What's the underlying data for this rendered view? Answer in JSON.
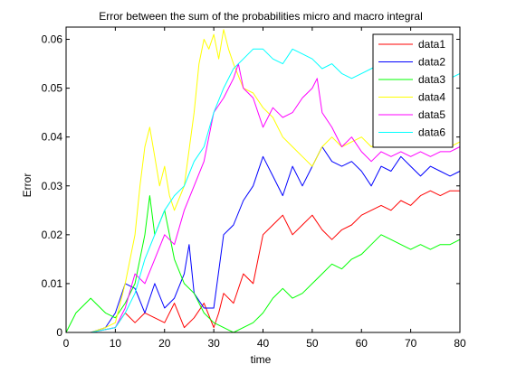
{
  "chart_data": {
    "type": "line",
    "title": "Error between the sum of the probabilities micro and macro integral",
    "xlabel": "time",
    "ylabel": "Error",
    "xlim": [
      0,
      80
    ],
    "ylim": [
      0,
      0.0625
    ],
    "xticks": [
      "0",
      "10",
      "20",
      "30",
      "40",
      "50",
      "60",
      "70",
      "80"
    ],
    "yticks": [
      "0",
      "0.01",
      "0.02",
      "0.03",
      "0.04",
      "0.05",
      "0.06"
    ],
    "grid": false,
    "legend_position": "top-right",
    "series": [
      {
        "name": "data1",
        "color": "#ff0000",
        "x": [
          0,
          5,
          10,
          12,
          14,
          16,
          18,
          20,
          22,
          24,
          26,
          28,
          30,
          31,
          32,
          34,
          36,
          38,
          40,
          42,
          44,
          46,
          48,
          50,
          52,
          54,
          56,
          58,
          60,
          62,
          64,
          66,
          68,
          70,
          72,
          74,
          76,
          78,
          80
        ],
        "y": [
          0,
          0,
          0.001,
          0.004,
          0.002,
          0.004,
          0.003,
          0.002,
          0.006,
          0.001,
          0.003,
          0.006,
          0.001,
          0.004,
          0.008,
          0.006,
          0.012,
          0.01,
          0.02,
          0.022,
          0.024,
          0.02,
          0.022,
          0.024,
          0.021,
          0.019,
          0.021,
          0.022,
          0.024,
          0.025,
          0.026,
          0.025,
          0.027,
          0.026,
          0.028,
          0.029,
          0.028,
          0.029,
          0.029
        ]
      },
      {
        "name": "data2",
        "color": "#0000ff",
        "x": [
          0,
          5,
          8,
          10,
          12,
          14,
          16,
          18,
          20,
          22,
          24,
          25,
          26,
          28,
          30,
          32,
          34,
          36,
          38,
          40,
          42,
          44,
          46,
          48,
          50,
          52,
          54,
          56,
          58,
          60,
          62,
          64,
          66,
          68,
          70,
          72,
          74,
          76,
          78,
          80
        ],
        "y": [
          0,
          0,
          0.001,
          0.004,
          0.01,
          0.009,
          0.004,
          0.01,
          0.005,
          0.007,
          0.012,
          0.018,
          0.008,
          0.005,
          0.005,
          0.02,
          0.022,
          0.027,
          0.03,
          0.036,
          0.032,
          0.028,
          0.034,
          0.03,
          0.034,
          0.038,
          0.035,
          0.034,
          0.035,
          0.033,
          0.03,
          0.034,
          0.033,
          0.036,
          0.034,
          0.032,
          0.034,
          0.033,
          0.032,
          0.033
        ]
      },
      {
        "name": "data3",
        "color": "#00ff00",
        "x": [
          0,
          2,
          5,
          6,
          8,
          10,
          12,
          14,
          16,
          17,
          18,
          20,
          22,
          24,
          26,
          28,
          30,
          32,
          34,
          36,
          38,
          40,
          42,
          44,
          46,
          48,
          50,
          52,
          54,
          56,
          58,
          60,
          62,
          64,
          66,
          68,
          70,
          72,
          74,
          76,
          78,
          80
        ],
        "y": [
          0,
          0.004,
          0.007,
          0.006,
          0.004,
          0.003,
          0.006,
          0.01,
          0.02,
          0.028,
          0.02,
          0.025,
          0.015,
          0.01,
          0.008,
          0.004,
          0.002,
          0.001,
          0.0,
          0.001,
          0.002,
          0.004,
          0.007,
          0.009,
          0.007,
          0.008,
          0.01,
          0.012,
          0.014,
          0.013,
          0.015,
          0.016,
          0.018,
          0.02,
          0.019,
          0.018,
          0.017,
          0.018,
          0.017,
          0.018,
          0.018,
          0.019
        ]
      },
      {
        "name": "data4",
        "color": "#ffff00",
        "x": [
          0,
          5,
          8,
          10,
          12,
          14,
          15,
          16,
          17,
          18,
          19,
          20,
          21,
          22,
          24,
          26,
          27,
          28,
          29,
          30,
          31,
          32,
          33,
          34,
          36,
          38,
          40,
          42,
          44,
          46,
          48,
          50,
          52,
          54,
          56,
          58,
          60,
          62,
          64,
          66,
          68,
          70,
          72,
          74,
          76,
          78,
          80
        ],
        "y": [
          0,
          0,
          0.001,
          0.002,
          0.01,
          0.02,
          0.03,
          0.038,
          0.042,
          0.036,
          0.03,
          0.034,
          0.028,
          0.025,
          0.03,
          0.045,
          0.055,
          0.06,
          0.058,
          0.061,
          0.056,
          0.062,
          0.058,
          0.055,
          0.05,
          0.049,
          0.046,
          0.044,
          0.04,
          0.038,
          0.036,
          0.034,
          0.038,
          0.04,
          0.038,
          0.039,
          0.04,
          0.038,
          0.039,
          0.038,
          0.04,
          0.039,
          0.038,
          0.039,
          0.039,
          0.038,
          0.039
        ]
      },
      {
        "name": "data5",
        "color": "#ff00ff",
        "x": [
          0,
          5,
          10,
          12,
          14,
          16,
          18,
          20,
          22,
          24,
          26,
          28,
          30,
          32,
          34,
          35,
          36,
          38,
          40,
          42,
          44,
          46,
          48,
          50,
          51,
          52,
          54,
          56,
          58,
          60,
          62,
          64,
          66,
          68,
          70,
          72,
          74,
          76,
          78,
          80
        ],
        "y": [
          0,
          0,
          0.001,
          0.005,
          0.012,
          0.01,
          0.015,
          0.02,
          0.018,
          0.025,
          0.03,
          0.035,
          0.045,
          0.048,
          0.052,
          0.055,
          0.05,
          0.048,
          0.042,
          0.046,
          0.044,
          0.045,
          0.048,
          0.05,
          0.052,
          0.045,
          0.042,
          0.038,
          0.04,
          0.037,
          0.035,
          0.037,
          0.036,
          0.037,
          0.036,
          0.037,
          0.036,
          0.037,
          0.037,
          0.038
        ]
      },
      {
        "name": "data6",
        "color": "#00ffff",
        "x": [
          0,
          5,
          10,
          12,
          14,
          16,
          18,
          20,
          22,
          24,
          26,
          28,
          30,
          32,
          34,
          36,
          38,
          40,
          42,
          44,
          46,
          48,
          50,
          52,
          54,
          56,
          58,
          60,
          62,
          64,
          66,
          68,
          70,
          72,
          74,
          76,
          78,
          80
        ],
        "y": [
          0,
          0,
          0.001,
          0.004,
          0.008,
          0.015,
          0.02,
          0.025,
          0.028,
          0.03,
          0.035,
          0.038,
          0.045,
          0.05,
          0.054,
          0.056,
          0.058,
          0.058,
          0.056,
          0.055,
          0.058,
          0.057,
          0.056,
          0.054,
          0.055,
          0.053,
          0.052,
          0.053,
          0.054,
          0.055,
          0.055,
          0.054,
          0.056,
          0.055,
          0.054,
          0.053,
          0.052,
          0.053
        ]
      }
    ]
  }
}
